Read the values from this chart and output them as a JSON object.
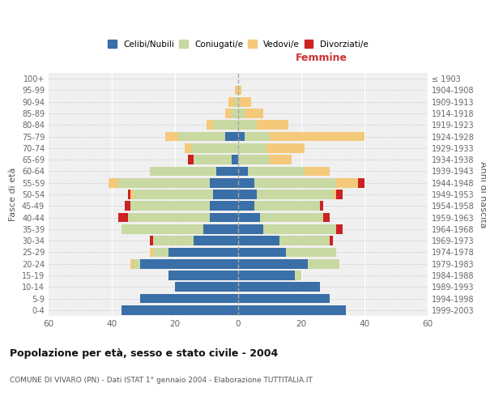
{
  "age_groups": [
    "0-4",
    "5-9",
    "10-14",
    "15-19",
    "20-24",
    "25-29",
    "30-34",
    "35-39",
    "40-44",
    "45-49",
    "50-54",
    "55-59",
    "60-64",
    "65-69",
    "70-74",
    "75-79",
    "80-84",
    "85-89",
    "90-94",
    "95-99",
    "100+"
  ],
  "birth_years": [
    "1999-2003",
    "1994-1998",
    "1989-1993",
    "1984-1988",
    "1979-1983",
    "1974-1978",
    "1969-1973",
    "1964-1968",
    "1959-1963",
    "1954-1958",
    "1949-1953",
    "1944-1948",
    "1939-1943",
    "1934-1938",
    "1929-1933",
    "1924-1928",
    "1919-1923",
    "1914-1918",
    "1909-1913",
    "1904-1908",
    "≤ 1903"
  ],
  "males": {
    "celibi": [
      37,
      31,
      20,
      22,
      31,
      22,
      14,
      11,
      9,
      9,
      8,
      9,
      7,
      2,
      0,
      4,
      0,
      0,
      0,
      0,
      0
    ],
    "coniugati": [
      0,
      0,
      0,
      0,
      2,
      5,
      13,
      26,
      26,
      25,
      25,
      29,
      21,
      12,
      15,
      15,
      8,
      2,
      1,
      0,
      0
    ],
    "vedovi": [
      0,
      0,
      0,
      0,
      1,
      1,
      0,
      0,
      0,
      0,
      1,
      3,
      0,
      0,
      2,
      4,
      2,
      2,
      2,
      1,
      0
    ],
    "divorziati": [
      0,
      0,
      0,
      0,
      0,
      0,
      1,
      0,
      3,
      2,
      1,
      0,
      0,
      2,
      0,
      0,
      0,
      0,
      0,
      0,
      0
    ]
  },
  "females": {
    "nubili": [
      34,
      29,
      26,
      18,
      22,
      15,
      13,
      8,
      7,
      5,
      6,
      5,
      3,
      0,
      0,
      2,
      0,
      0,
      0,
      0,
      0
    ],
    "coniugate": [
      0,
      0,
      0,
      2,
      10,
      16,
      16,
      23,
      20,
      21,
      24,
      26,
      18,
      10,
      9,
      8,
      6,
      2,
      0,
      0,
      0
    ],
    "vedove": [
      0,
      0,
      0,
      0,
      0,
      0,
      0,
      0,
      0,
      0,
      1,
      7,
      8,
      7,
      12,
      30,
      10,
      6,
      4,
      1,
      0
    ],
    "divorziate": [
      0,
      0,
      0,
      0,
      0,
      0,
      1,
      2,
      2,
      1,
      2,
      2,
      0,
      0,
      0,
      0,
      0,
      0,
      0,
      0,
      0
    ]
  },
  "colors": {
    "celibi": "#3a6fa8",
    "coniugati": "#c8d9a2",
    "vedovi": "#f5c97a",
    "divorziati": "#cc2222"
  },
  "title": "Popolazione per età, sesso e stato civile - 2004",
  "subtitle": "COMUNE DI VIVARO (PN) - Dati ISTAT 1° gennaio 2004 - Elaborazione TUTTITALIA.IT",
  "xlabel_right": "Femmine",
  "ylabel_left": "Fasce di età",
  "ylabel_right": "Anni di nascita",
  "xlim": 60,
  "bg_color": "#f0f0f0",
  "legend_labels": [
    "Celibi/Nubili",
    "Coniugati/e",
    "Vedovi/e",
    "Divorziati/e"
  ]
}
